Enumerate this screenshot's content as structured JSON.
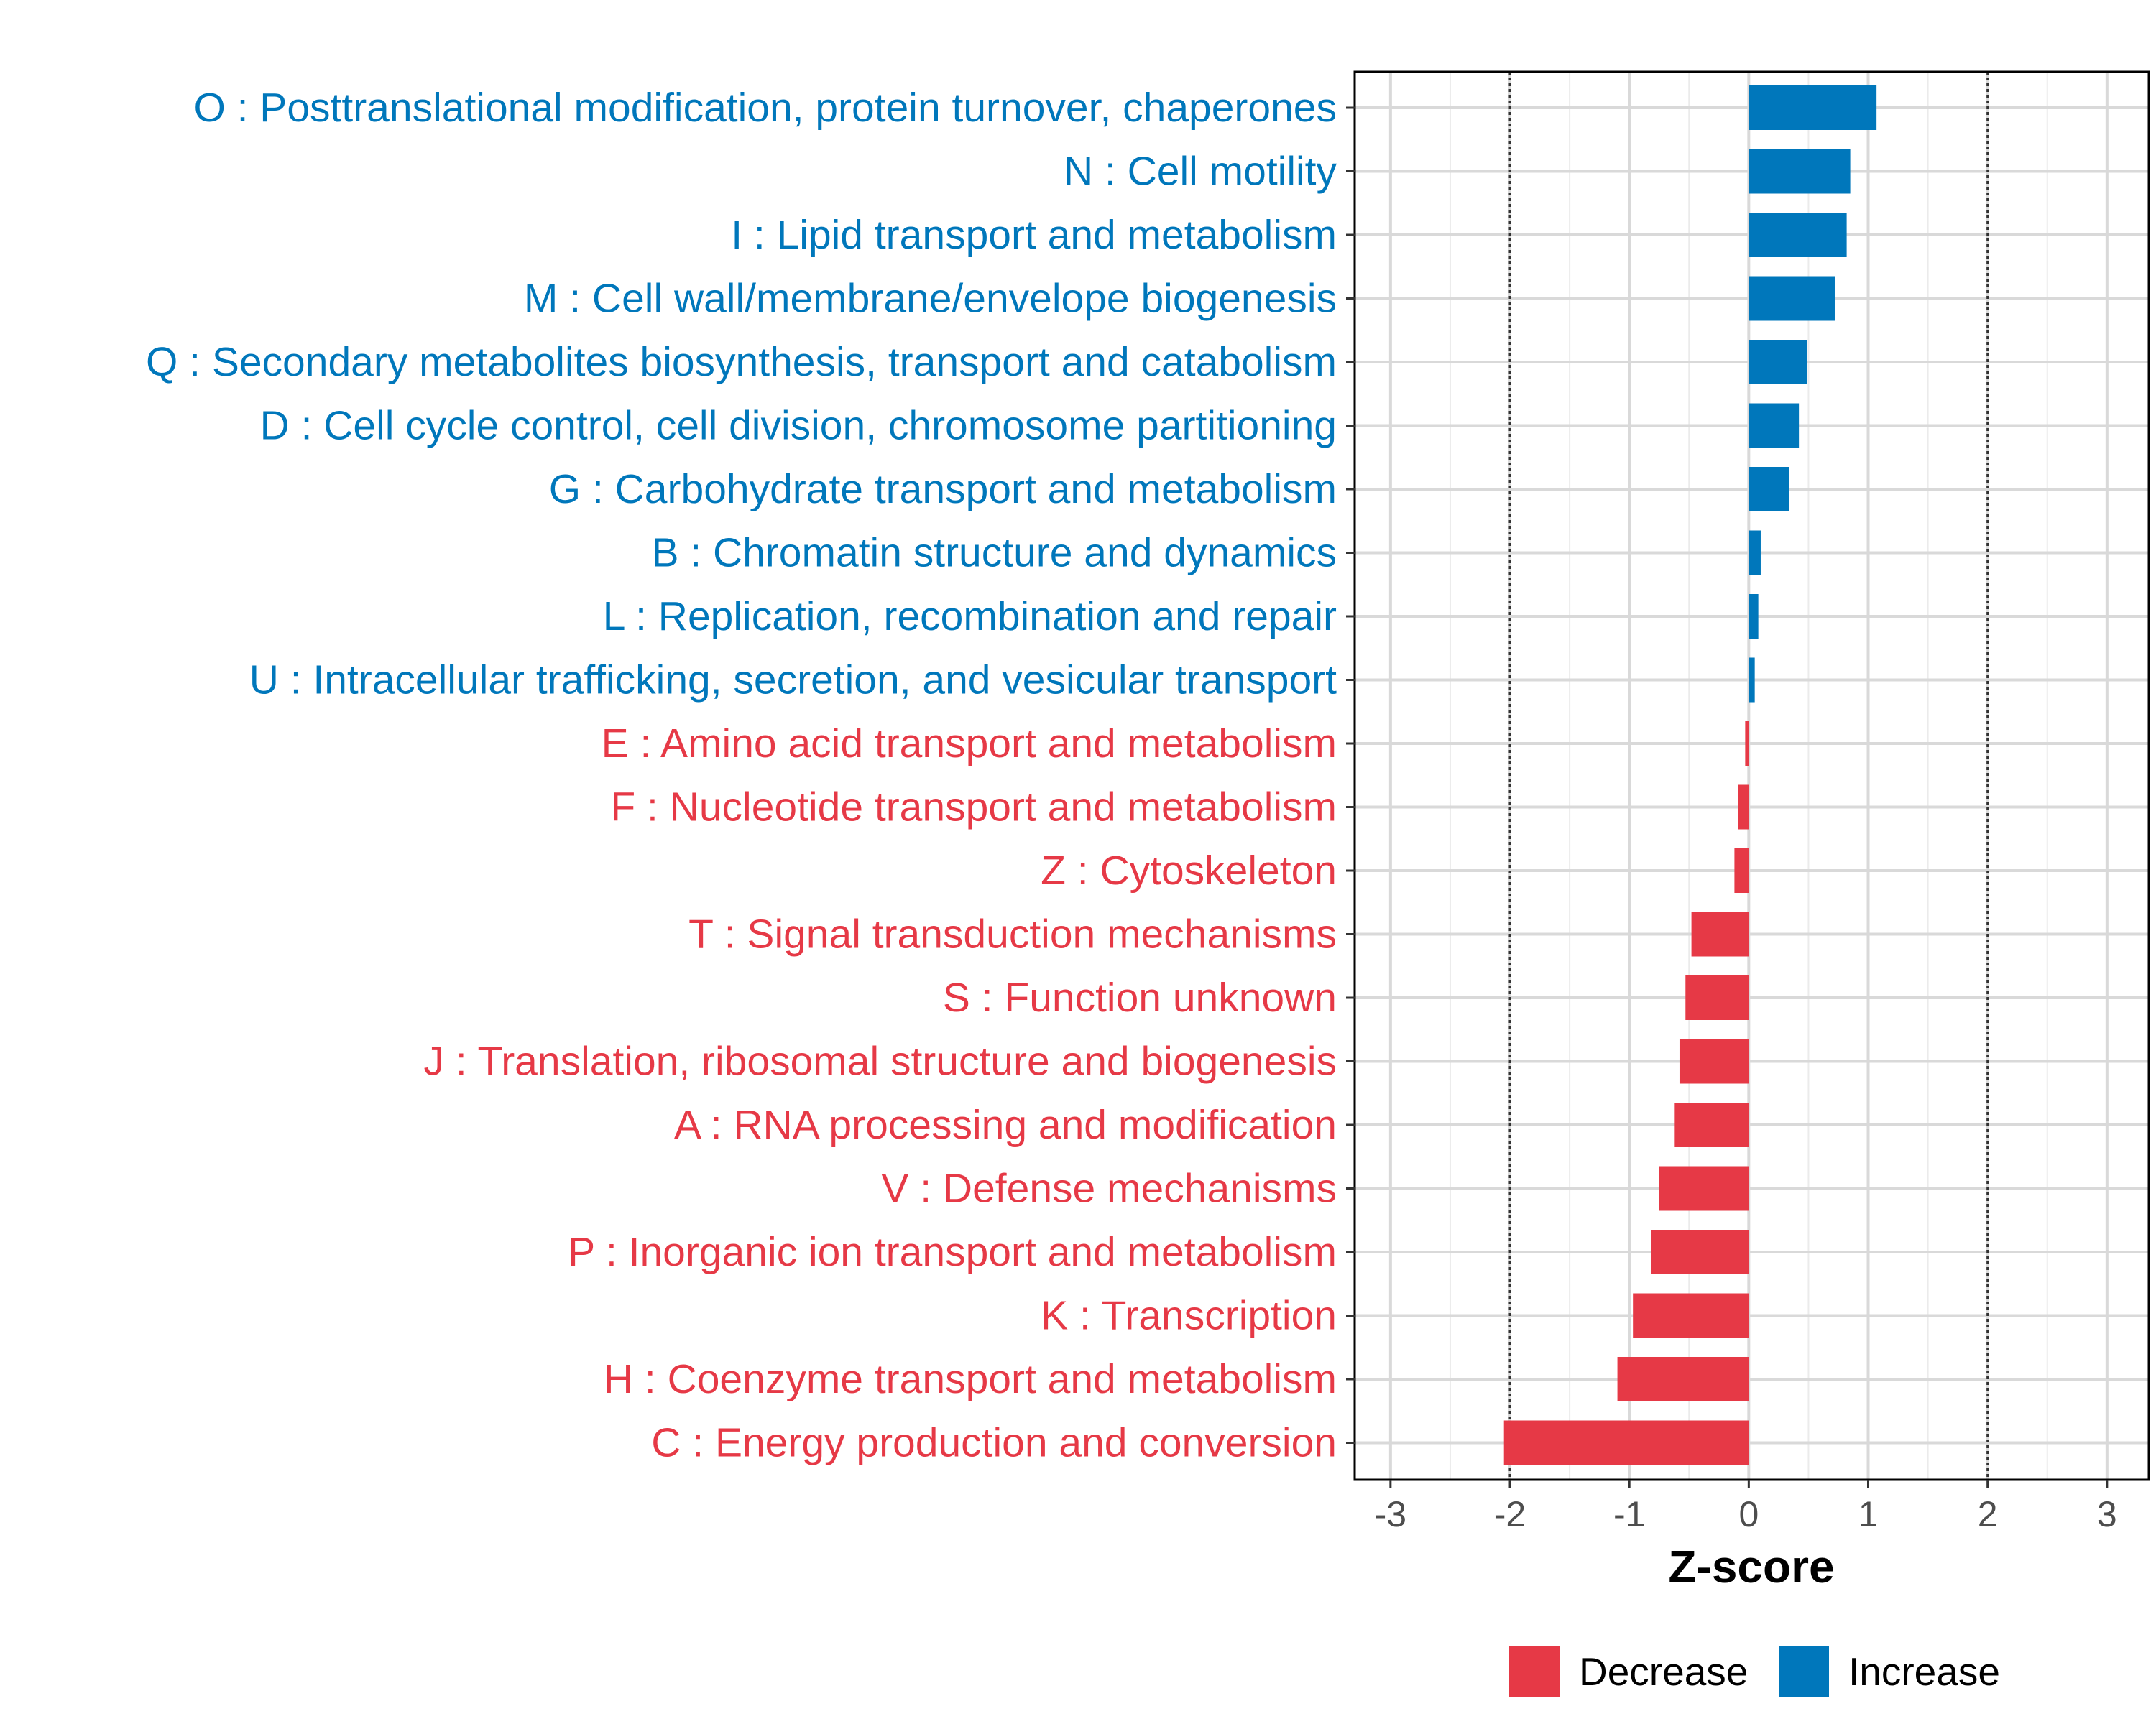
{
  "chart_data": {
    "type": "bar",
    "orientation": "horizontal",
    "xlabel": "Z-score",
    "ylabel": "",
    "xlim": [
      -3.3,
      3.35
    ],
    "x_ticks": [
      -3,
      -2,
      -1,
      0,
      1,
      2,
      3
    ],
    "x_tick_labels": [
      "-3",
      "-2",
      "-1",
      "0",
      "1",
      "2",
      "3"
    ],
    "reference_lines": [
      -2,
      2
    ],
    "grid": true,
    "legend_position": "bottom",
    "legend": [
      {
        "key": "decrease",
        "label": "Decrease",
        "color": "#E63946"
      },
      {
        "key": "increase",
        "label": "Increase",
        "color": "#0077BB"
      }
    ],
    "colors": {
      "decrease": "#E63946",
      "increase": "#0077BB"
    },
    "categories": [
      {
        "label": "O : Posttranslational modification, protein turnover, chaperones",
        "value": 1.07,
        "group": "increase"
      },
      {
        "label": "N : Cell motility",
        "value": 0.85,
        "group": "increase"
      },
      {
        "label": "I : Lipid transport and metabolism",
        "value": 0.82,
        "group": "increase"
      },
      {
        "label": "M : Cell wall/membrane/envelope biogenesis",
        "value": 0.72,
        "group": "increase"
      },
      {
        "label": "Q : Secondary metabolites biosynthesis, transport and catabolism",
        "value": 0.49,
        "group": "increase"
      },
      {
        "label": "D : Cell cycle control, cell division, chromosome partitioning",
        "value": 0.42,
        "group": "increase"
      },
      {
        "label": "G : Carbohydrate transport and metabolism",
        "value": 0.34,
        "group": "increase"
      },
      {
        "label": "B : Chromatin structure and dynamics",
        "value": 0.1,
        "group": "increase"
      },
      {
        "label": "L : Replication, recombination and repair",
        "value": 0.08,
        "group": "increase"
      },
      {
        "label": "U : Intracellular trafficking, secretion, and vesicular transport",
        "value": 0.05,
        "group": "increase"
      },
      {
        "label": "E : Amino acid transport and metabolism",
        "value": -0.03,
        "group": "decrease"
      },
      {
        "label": "F : Nucleotide transport and metabolism",
        "value": -0.09,
        "group": "decrease"
      },
      {
        "label": "Z : Cytoskeleton",
        "value": -0.12,
        "group": "decrease"
      },
      {
        "label": "T : Signal transduction mechanisms",
        "value": -0.48,
        "group": "decrease"
      },
      {
        "label": "S : Function unknown",
        "value": -0.53,
        "group": "decrease"
      },
      {
        "label": "J : Translation, ribosomal structure and biogenesis",
        "value": -0.58,
        "group": "decrease"
      },
      {
        "label": "A : RNA processing and modification",
        "value": -0.62,
        "group": "decrease"
      },
      {
        "label": "V : Defense mechanisms",
        "value": -0.75,
        "group": "decrease"
      },
      {
        "label": "P : Inorganic ion transport and metabolism",
        "value": -0.82,
        "group": "decrease"
      },
      {
        "label": "K : Transcription",
        "value": -0.97,
        "group": "decrease"
      },
      {
        "label": "H : Coenzyme transport and metabolism",
        "value": -1.1,
        "group": "decrease"
      },
      {
        "label": "C : Energy production and conversion",
        "value": -2.05,
        "group": "decrease"
      }
    ]
  }
}
